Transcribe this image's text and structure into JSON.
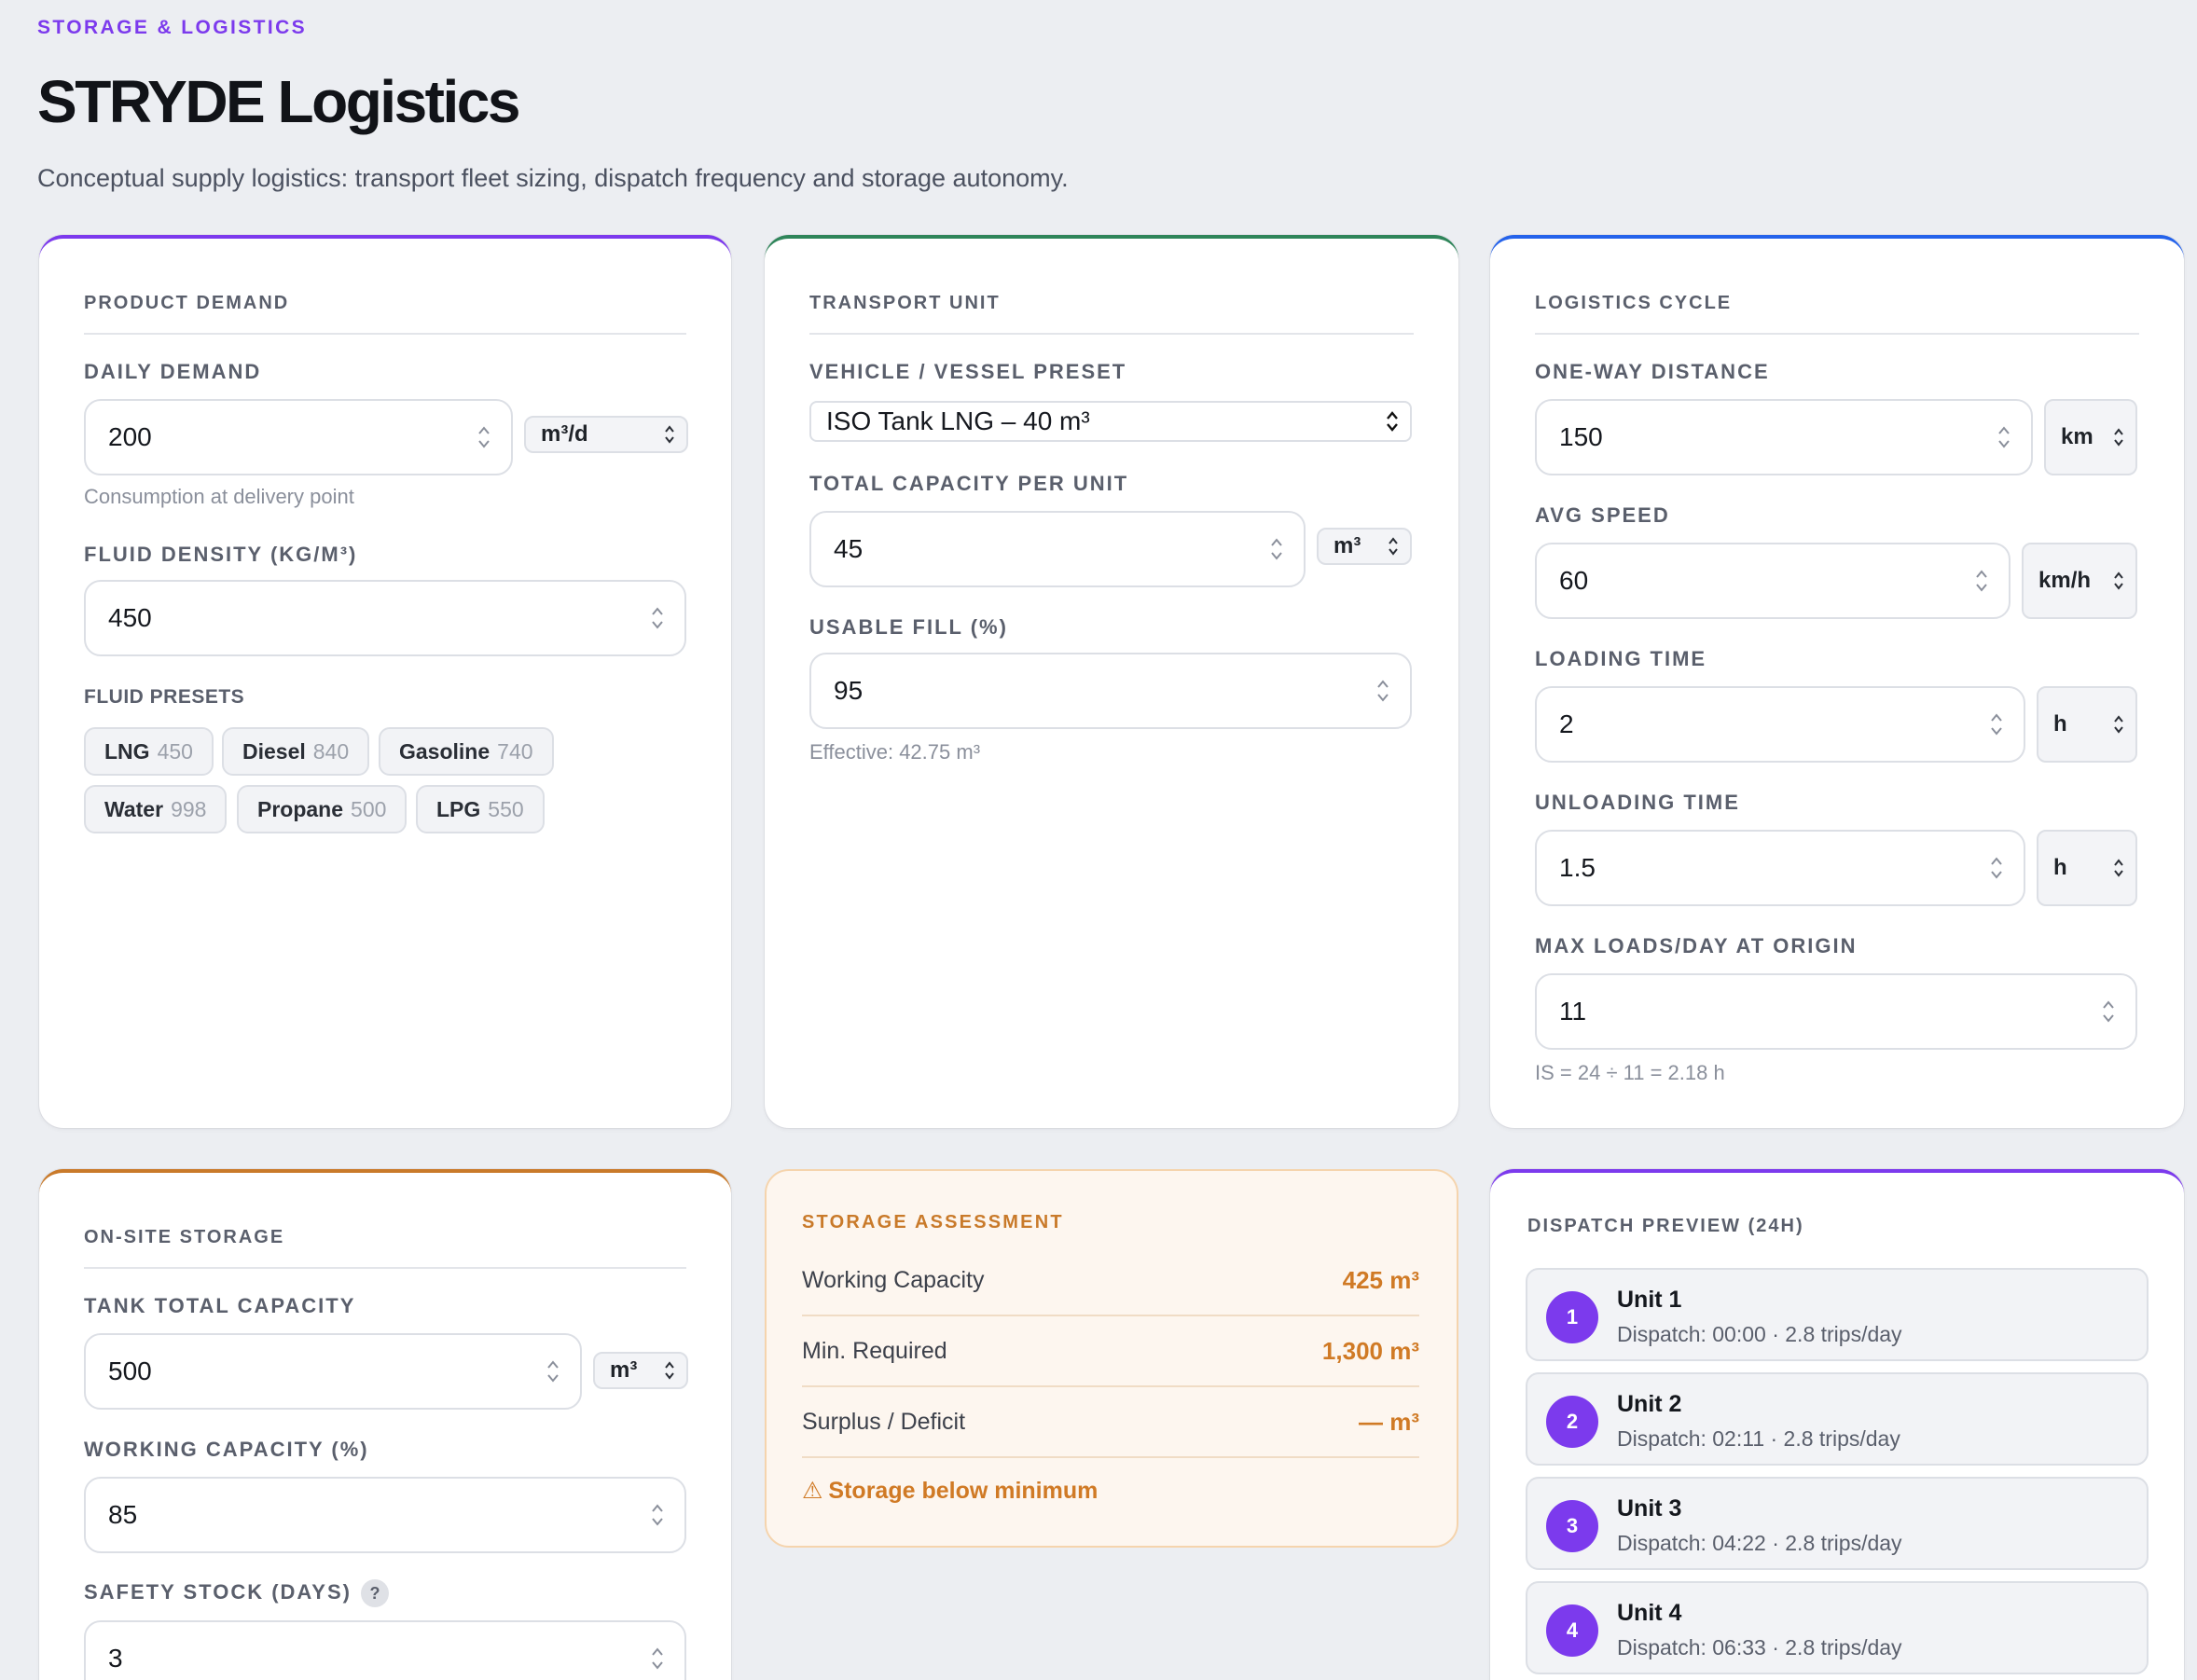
{
  "header": {
    "eyebrow": "STORAGE & LOGISTICS",
    "title": "STRYDE Logistics",
    "subtitle": "Conceptual supply logistics: transport fleet sizing, dispatch frequency and storage autonomy."
  },
  "colors": {
    "accent_purple": "#7c3aed",
    "accent_green": "#2f855a",
    "accent_blue": "#2563eb",
    "accent_orange": "#c97a2a"
  },
  "product_demand": {
    "title": "PRODUCT DEMAND",
    "daily_demand_label": "DAILY DEMAND",
    "daily_demand_value": "200",
    "daily_demand_unit": "m³/d",
    "daily_demand_hint": "Consumption at delivery point",
    "density_label": "FLUID DENSITY (KG/M³)",
    "density_value": "450",
    "presets_label": "FLUID PRESETS",
    "presets": [
      {
        "name": "LNG",
        "value": "450"
      },
      {
        "name": "Diesel",
        "value": "840"
      },
      {
        "name": "Gasoline",
        "value": "740"
      },
      {
        "name": "Water",
        "value": "998"
      },
      {
        "name": "Propane",
        "value": "500"
      },
      {
        "name": "LPG",
        "value": "550"
      }
    ]
  },
  "transport_unit": {
    "title": "TRANSPORT UNIT",
    "preset_label": "VEHICLE / VESSEL PRESET",
    "preset_value": "ISO Tank LNG – 40 m³",
    "capacity_label": "TOTAL CAPACITY PER UNIT",
    "capacity_value": "45",
    "capacity_unit": "m³",
    "fill_label": "USABLE FILL (%)",
    "fill_value": "95",
    "fill_hint": "Effective: 42.75 m³"
  },
  "logistics_cycle": {
    "title": "LOGISTICS CYCLE",
    "distance_label": "ONE-WAY DISTANCE",
    "distance_value": "150",
    "distance_unit": "km",
    "speed_label": "AVG SPEED",
    "speed_value": "60",
    "speed_unit": "km/h",
    "loading_label": "LOADING TIME",
    "loading_value": "2",
    "loading_unit": "h",
    "unloading_label": "UNLOADING TIME",
    "unloading_value": "1.5",
    "unloading_unit": "h",
    "max_loads_label": "MAX LOADS/DAY AT ORIGIN",
    "max_loads_value": "11",
    "max_loads_hint": "IS = 24 ÷ 11 = 2.18 h"
  },
  "storage": {
    "title": "ON-SITE STORAGE",
    "tank_label": "TANK TOTAL CAPACITY",
    "tank_value": "500",
    "tank_unit": "m³",
    "working_label": "WORKING CAPACITY (%)",
    "working_value": "85",
    "safety_label": "SAFETY STOCK (DAYS)",
    "safety_help": "?",
    "safety_value": "3"
  },
  "assessment": {
    "title": "STORAGE ASSESSMENT",
    "rows": [
      {
        "label": "Working Capacity",
        "value": "425 m³"
      },
      {
        "label": "Min. Required",
        "value": "1,300 m³"
      },
      {
        "label": "Surplus / Deficit",
        "value": "— m³"
      }
    ],
    "warning_icon": "⚠",
    "warning": "Storage below minimum"
  },
  "dispatch": {
    "title": "DISPATCH PREVIEW (24H)",
    "units": [
      {
        "num": "1",
        "name": "Unit 1",
        "detail": "Dispatch: 00:00 · 2.8 trips/day"
      },
      {
        "num": "2",
        "name": "Unit 2",
        "detail": "Dispatch: 02:11 · 2.8 trips/day"
      },
      {
        "num": "3",
        "name": "Unit 3",
        "detail": "Dispatch: 04:22 · 2.8 trips/day"
      },
      {
        "num": "4",
        "name": "Unit 4",
        "detail": "Dispatch: 06:33 · 2.8 trips/day"
      }
    ]
  }
}
